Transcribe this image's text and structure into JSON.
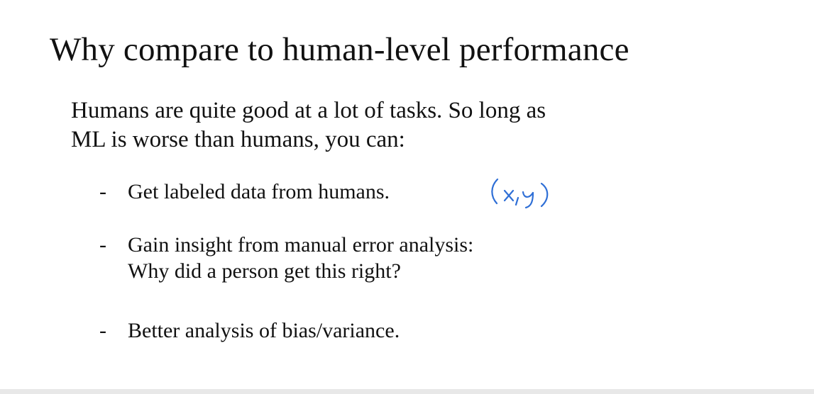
{
  "slide": {
    "title": "Why compare to human-level performance",
    "intro": {
      "line1": "Humans are quite good at a lot of tasks. So long as",
      "line2": "ML is worse than humans, you can:"
    },
    "bullets": [
      {
        "marker": "-",
        "lines": [
          "Get labeled data from humans."
        ]
      },
      {
        "marker": "-",
        "lines": [
          "Gain insight from manual error analysis:",
          "Why did a person get this right?"
        ]
      },
      {
        "marker": "-",
        "lines": [
          "Better analysis of bias/variance."
        ]
      }
    ],
    "annotation": {
      "text": "(x,y)",
      "color": "#2f6fd6"
    }
  }
}
